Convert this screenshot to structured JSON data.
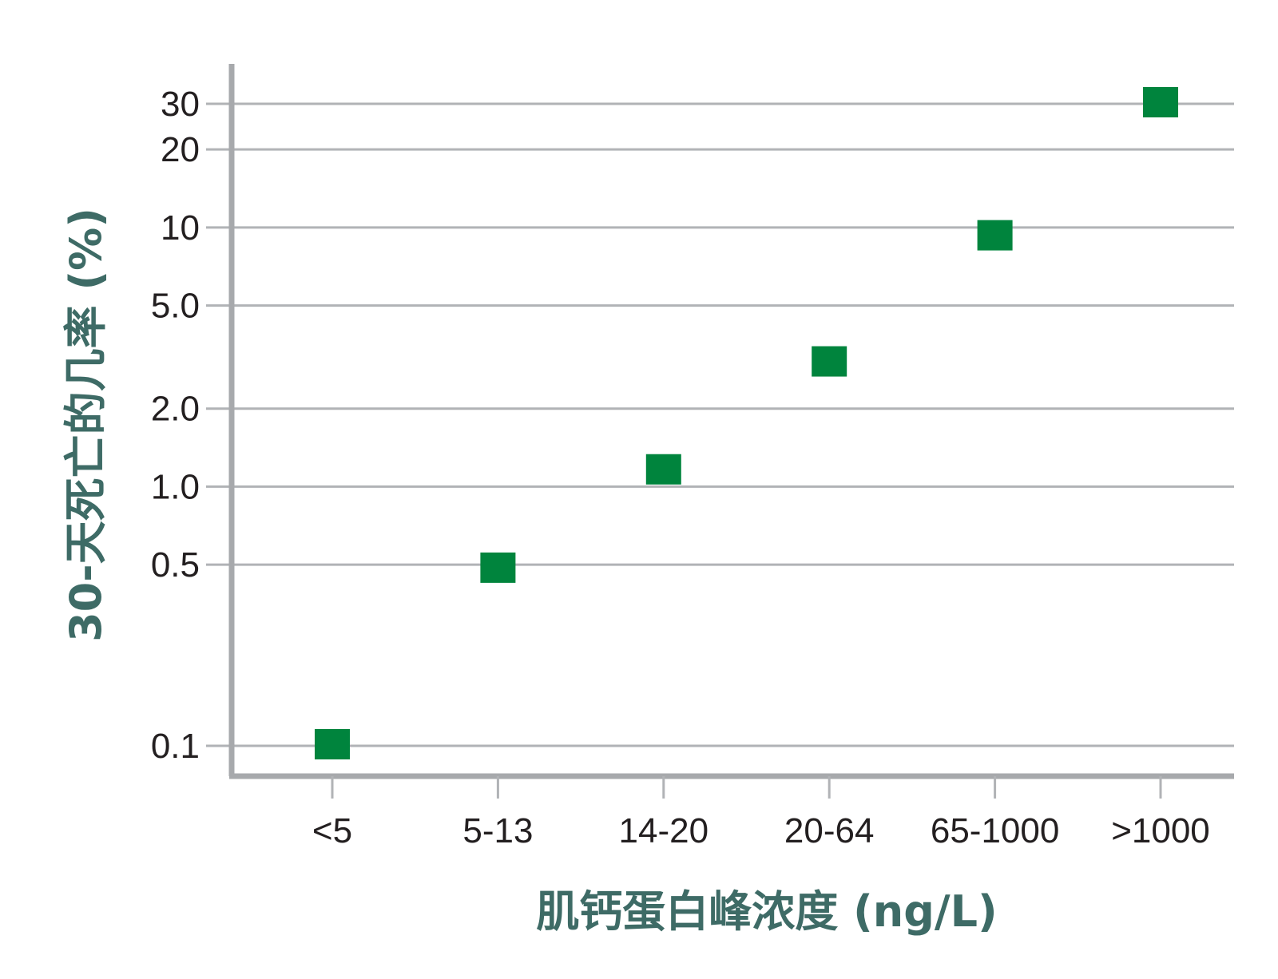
{
  "chart_data": {
    "type": "scatter",
    "title": "",
    "xlabel": "肌钙蛋白峰浓度 (ng/L)",
    "ylabel": "30-天死亡的几率 (%)",
    "y_scale": "log",
    "grid": "horizontal",
    "categories": [
      "<5",
      "5-13",
      "14-20",
      "20-64",
      "65-1000",
      ">1000"
    ],
    "y_ticks": [
      {
        "value": 0.1,
        "label": "0.1"
      },
      {
        "value": 0.5,
        "label": "0.5"
      },
      {
        "value": 1.0,
        "label": "1.0"
      },
      {
        "value": 2.0,
        "label": "2.0"
      },
      {
        "value": 5.0,
        "label": "5.0"
      },
      {
        "value": 10,
        "label": "10"
      },
      {
        "value": 20,
        "label": "20"
      },
      {
        "value": 30,
        "label": "30"
      }
    ],
    "series": [
      {
        "values": [
          0.1,
          0.48,
          1.15,
          3.0,
          9.2,
          30
        ]
      }
    ],
    "colors": {
      "marker": "#00843d",
      "grid": "#b1b3b6",
      "axis": "#a7a9ac",
      "label": "#3e6b66"
    }
  }
}
